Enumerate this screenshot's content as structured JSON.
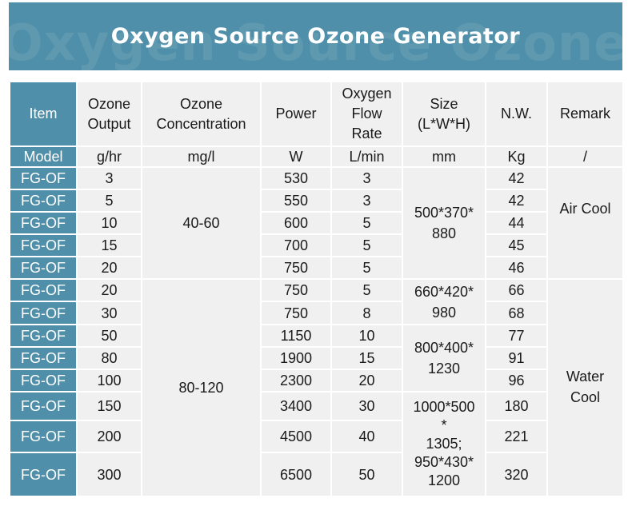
{
  "title": "Oxygen Source Ozone Generator",
  "headers": {
    "item": "Item",
    "output": [
      "Ozone",
      "Output"
    ],
    "concentration": [
      "Ozone",
      "Concentration"
    ],
    "power": "Power",
    "flow": [
      "Oxygen",
      "Flow",
      "Rate"
    ],
    "size": [
      "Size",
      "(L*W*H)"
    ],
    "nw": "N.W.",
    "remark": "Remark"
  },
  "units": {
    "model": "Model",
    "output": "g/hr",
    "concentration": "mg/l",
    "power": "W",
    "flow": "L/min",
    "size": "mm",
    "nw": "Kg",
    "remark": "/"
  },
  "rows": [
    {
      "model": "FG-OF",
      "output": "3",
      "power": "530",
      "flow": "3",
      "nw": "42"
    },
    {
      "model": "FG-OF",
      "output": "5",
      "power": "550",
      "flow": "3",
      "nw": "42"
    },
    {
      "model": "FG-OF",
      "output": "10",
      "power": "600",
      "flow": "5",
      "nw": "44"
    },
    {
      "model": "FG-OF",
      "output": "15",
      "power": "700",
      "flow": "5",
      "nw": "45"
    },
    {
      "model": "FG-OF",
      "output": "20",
      "power": "750",
      "flow": "5",
      "nw": "46"
    },
    {
      "model": "FG-OF",
      "output": "20",
      "power": "750",
      "flow": "5",
      "nw": "66"
    },
    {
      "model": "FG-OF",
      "output": "30",
      "power": "750",
      "flow": "8",
      "nw": "68"
    },
    {
      "model": "FG-OF",
      "output": "50",
      "power": "1150",
      "flow": "10",
      "nw": "77"
    },
    {
      "model": "FG-OF",
      "output": "80",
      "power": "1900",
      "flow": "15",
      "nw": "91"
    },
    {
      "model": "FG-OF",
      "output": "100",
      "power": "2300",
      "flow": "20",
      "nw": "96"
    },
    {
      "model": "FG-OF",
      "output": "150",
      "power": "3400",
      "flow": "30",
      "nw": "180"
    },
    {
      "model": "FG-OF",
      "output": "200",
      "power": "4500",
      "flow": "40",
      "nw": "221"
    },
    {
      "model": "FG-OF",
      "output": "300",
      "power": "6500",
      "flow": "50",
      "nw": "320"
    }
  ],
  "merged": {
    "concentration_a": "40-60",
    "concentration_b": "80-120",
    "size_a": [
      "500*370*",
      "880"
    ],
    "size_b": [
      "660*420*",
      "980"
    ],
    "size_c": [
      "800*400*",
      "1230"
    ],
    "size_d": [
      "1000*500",
      "*",
      "1305;",
      "950*430*",
      "1200"
    ],
    "remark_a": "Air Cool",
    "remark_b": [
      "Water",
      "Cool"
    ]
  }
}
